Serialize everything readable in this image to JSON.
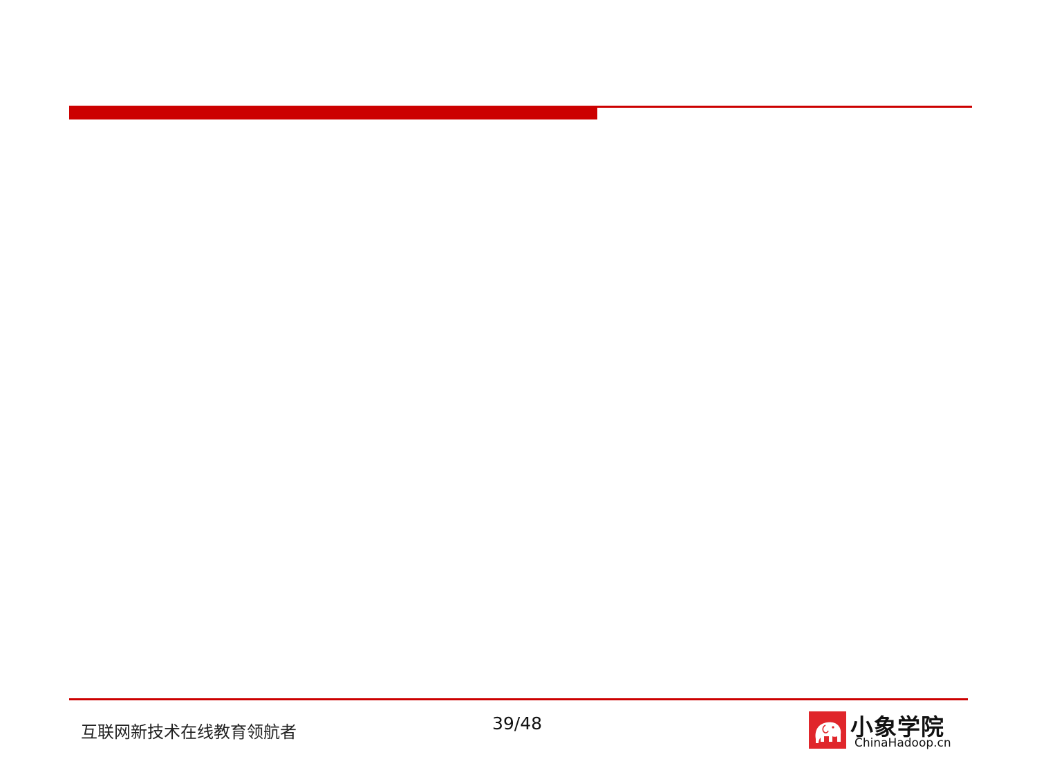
{
  "slide": {
    "accent_color": "#cc0000",
    "background": "#ffffff",
    "content": []
  },
  "footer": {
    "slogan": "互联网新技术在线教育领航者",
    "page_number": "39/48"
  },
  "logo": {
    "icon": "elephant-logo-icon",
    "cn_name": "小象学院",
    "en_name": "ChinaHadoop.cn"
  }
}
